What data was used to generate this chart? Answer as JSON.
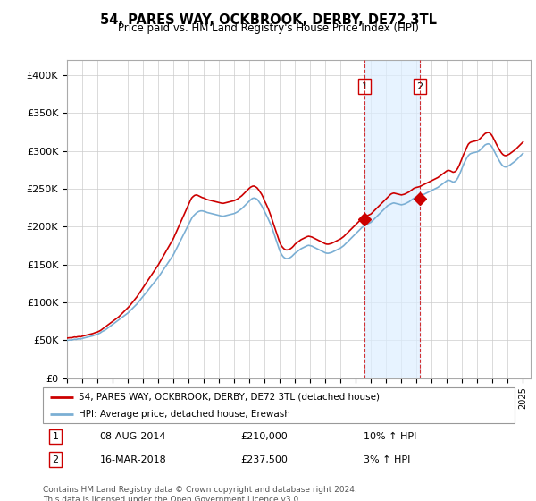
{
  "title": "54, PARES WAY, OCKBROOK, DERBY, DE72 3TL",
  "subtitle": "Price paid vs. HM Land Registry's House Price Index (HPI)",
  "ylabel_ticks": [
    "£0",
    "£50K",
    "£100K",
    "£150K",
    "£200K",
    "£250K",
    "£300K",
    "£350K",
    "£400K"
  ],
  "ytick_values": [
    0,
    50000,
    100000,
    150000,
    200000,
    250000,
    300000,
    350000,
    400000
  ],
  "ylim": [
    0,
    420000
  ],
  "xlim_start": 1995.0,
  "xlim_end": 2025.5,
  "legend_line1": "54, PARES WAY, OCKBROOK, DERBY, DE72 3TL (detached house)",
  "legend_line2": "HPI: Average price, detached house, Erewash",
  "transaction1_date": "08-AUG-2014",
  "transaction1_price": "£210,000",
  "transaction1_hpi": "10% ↑ HPI",
  "transaction2_date": "16-MAR-2018",
  "transaction2_price": "£237,500",
  "transaction2_hpi": "3% ↑ HPI",
  "footnote": "Contains HM Land Registry data © Crown copyright and database right 2024.\nThis data is licensed under the Open Government Licence v3.0.",
  "red_color": "#cc0000",
  "blue_color": "#7bafd4",
  "blue_fill_color": "#ddeeff",
  "grid_color": "#cccccc",
  "transaction1_x": 2014.58,
  "transaction2_x": 2018.21,
  "transaction1_y": 210000,
  "transaction2_y": 237500,
  "hpi_x": [
    1995.0,
    1995.1,
    1995.2,
    1995.3,
    1995.4,
    1995.5,
    1995.6,
    1995.7,
    1995.8,
    1995.9,
    1996.0,
    1996.1,
    1996.2,
    1996.3,
    1996.4,
    1996.5,
    1996.6,
    1996.7,
    1996.8,
    1996.9,
    1997.0,
    1997.1,
    1997.2,
    1997.3,
    1997.4,
    1997.5,
    1997.6,
    1997.7,
    1997.8,
    1997.9,
    1998.0,
    1998.1,
    1998.2,
    1998.3,
    1998.4,
    1998.5,
    1998.6,
    1998.7,
    1998.8,
    1998.9,
    1999.0,
    1999.1,
    1999.2,
    1999.3,
    1999.4,
    1999.5,
    1999.6,
    1999.7,
    1999.8,
    1999.9,
    2000.0,
    2000.1,
    2000.2,
    2000.3,
    2000.4,
    2000.5,
    2000.6,
    2000.7,
    2000.8,
    2000.9,
    2001.0,
    2001.1,
    2001.2,
    2001.3,
    2001.4,
    2001.5,
    2001.6,
    2001.7,
    2001.8,
    2001.9,
    2002.0,
    2002.1,
    2002.2,
    2002.3,
    2002.4,
    2002.5,
    2002.6,
    2002.7,
    2002.8,
    2002.9,
    2003.0,
    2003.1,
    2003.2,
    2003.3,
    2003.4,
    2003.5,
    2003.6,
    2003.7,
    2003.8,
    2003.9,
    2004.0,
    2004.1,
    2004.2,
    2004.3,
    2004.4,
    2004.5,
    2004.6,
    2004.7,
    2004.8,
    2004.9,
    2005.0,
    2005.1,
    2005.2,
    2005.3,
    2005.4,
    2005.5,
    2005.6,
    2005.7,
    2005.8,
    2005.9,
    2006.0,
    2006.1,
    2006.2,
    2006.3,
    2006.4,
    2006.5,
    2006.6,
    2006.7,
    2006.8,
    2006.9,
    2007.0,
    2007.1,
    2007.2,
    2007.3,
    2007.4,
    2007.5,
    2007.6,
    2007.7,
    2007.8,
    2007.9,
    2008.0,
    2008.1,
    2008.2,
    2008.3,
    2008.4,
    2008.5,
    2008.6,
    2008.7,
    2008.8,
    2008.9,
    2009.0,
    2009.1,
    2009.2,
    2009.3,
    2009.4,
    2009.5,
    2009.6,
    2009.7,
    2009.8,
    2009.9,
    2010.0,
    2010.1,
    2010.2,
    2010.3,
    2010.4,
    2010.5,
    2010.6,
    2010.7,
    2010.8,
    2010.9,
    2011.0,
    2011.1,
    2011.2,
    2011.3,
    2011.4,
    2011.5,
    2011.6,
    2011.7,
    2011.8,
    2011.9,
    2012.0,
    2012.1,
    2012.2,
    2012.3,
    2012.4,
    2012.5,
    2012.6,
    2012.7,
    2012.8,
    2012.9,
    2013.0,
    2013.1,
    2013.2,
    2013.3,
    2013.4,
    2013.5,
    2013.6,
    2013.7,
    2013.8,
    2013.9,
    2014.0,
    2014.1,
    2014.2,
    2014.3,
    2014.4,
    2014.5,
    2014.6,
    2014.7,
    2014.8,
    2014.9,
    2015.0,
    2015.1,
    2015.2,
    2015.3,
    2015.4,
    2015.5,
    2015.6,
    2015.7,
    2015.8,
    2015.9,
    2016.0,
    2016.1,
    2016.2,
    2016.3,
    2016.4,
    2016.5,
    2016.6,
    2016.7,
    2016.8,
    2016.9,
    2017.0,
    2017.1,
    2017.2,
    2017.3,
    2017.4,
    2017.5,
    2017.6,
    2017.7,
    2017.8,
    2017.9,
    2018.0,
    2018.1,
    2018.2,
    2018.3,
    2018.4,
    2018.5,
    2018.6,
    2018.7,
    2018.8,
    2018.9,
    2019.0,
    2019.1,
    2019.2,
    2019.3,
    2019.4,
    2019.5,
    2019.6,
    2019.7,
    2019.8,
    2019.9,
    2020.0,
    2020.1,
    2020.2,
    2020.3,
    2020.4,
    2020.5,
    2020.6,
    2020.7,
    2020.8,
    2020.9,
    2021.0,
    2021.1,
    2021.2,
    2021.3,
    2021.4,
    2021.5,
    2021.6,
    2021.7,
    2021.8,
    2021.9,
    2022.0,
    2022.1,
    2022.2,
    2022.3,
    2022.4,
    2022.5,
    2022.6,
    2022.7,
    2022.8,
    2022.9,
    2023.0,
    2023.1,
    2023.2,
    2023.3,
    2023.4,
    2023.5,
    2023.6,
    2023.7,
    2023.8,
    2023.9,
    2024.0,
    2024.1,
    2024.2,
    2024.3,
    2024.4,
    2024.5,
    2024.6,
    2024.7,
    2024.8,
    2024.9,
    2025.0
  ],
  "hpi_y": [
    50000,
    50200,
    50500,
    50300,
    51000,
    51500,
    51200,
    51800,
    52000,
    51700,
    52500,
    53000,
    53500,
    54000,
    54500,
    55000,
    55500,
    56000,
    56800,
    57500,
    58000,
    59000,
    60000,
    61500,
    62500,
    63500,
    65000,
    66500,
    68000,
    69500,
    71000,
    72500,
    74000,
    75500,
    77000,
    78500,
    80000,
    81500,
    83000,
    84500,
    86000,
    88000,
    90000,
    92000,
    94000,
    96000,
    98000,
    100500,
    103000,
    105500,
    108000,
    110500,
    113000,
    115500,
    118000,
    120500,
    123000,
    125500,
    128000,
    130500,
    133000,
    136000,
    139000,
    142000,
    145000,
    148000,
    151000,
    154000,
    157000,
    160000,
    163000,
    167000,
    171000,
    175000,
    179000,
    183000,
    187000,
    191000,
    195000,
    199000,
    203000,
    207000,
    211000,
    214000,
    216000,
    218000,
    219500,
    220500,
    221000,
    221000,
    220500,
    220000,
    219000,
    218500,
    218000,
    217500,
    217000,
    216500,
    216000,
    215500,
    215000,
    214500,
    214000,
    214000,
    214500,
    215000,
    215500,
    216000,
    216500,
    217000,
    217500,
    218500,
    219500,
    221000,
    222500,
    224000,
    226000,
    228000,
    230000,
    232000,
    234000,
    236000,
    237500,
    238000,
    237500,
    236500,
    234000,
    231000,
    228000,
    224000,
    220000,
    216000,
    212000,
    207500,
    203000,
    198000,
    192000,
    186000,
    180000,
    174000,
    168000,
    164000,
    161000,
    159000,
    158000,
    158000,
    158500,
    159500,
    161000,
    163000,
    165000,
    166500,
    168000,
    169500,
    171000,
    172000,
    173000,
    174000,
    175000,
    175500,
    175000,
    174500,
    173500,
    172500,
    171500,
    170500,
    169500,
    168500,
    167500,
    166500,
    165500,
    165000,
    165000,
    165500,
    166000,
    167000,
    168000,
    169000,
    170000,
    171000,
    172000,
    173500,
    175000,
    177000,
    179000,
    181000,
    183000,
    185000,
    187000,
    189000,
    191000,
    193000,
    195000,
    197000,
    199000,
    200500,
    202000,
    203000,
    204000,
    205000,
    206000,
    208000,
    210000,
    212000,
    214000,
    216000,
    218000,
    220000,
    222000,
    224000,
    226000,
    228000,
    229000,
    230000,
    231000,
    231500,
    231000,
    230500,
    230000,
    229500,
    229000,
    229500,
    230000,
    231000,
    232000,
    233000,
    234500,
    236000,
    237500,
    238500,
    239000,
    239500,
    240000,
    241000,
    242000,
    243000,
    244000,
    245000,
    246000,
    247000,
    248000,
    249000,
    250000,
    251000,
    252000,
    253500,
    255000,
    256500,
    258000,
    259500,
    261000,
    261500,
    261000,
    260000,
    259000,
    259500,
    261000,
    264000,
    268000,
    273000,
    278000,
    283000,
    287000,
    291000,
    294000,
    296000,
    297000,
    297500,
    298000,
    298500,
    299000,
    300000,
    302000,
    304000,
    306000,
    308000,
    309000,
    309500,
    309000,
    307000,
    304000,
    300000,
    296000,
    292000,
    288500,
    285000,
    282000,
    280000,
    279000,
    279000,
    280000,
    281000,
    282500,
    284000,
    285500,
    287000,
    289000,
    291000,
    293000,
    295000,
    297000
  ],
  "red_y": [
    53000,
    53200,
    53500,
    53300,
    54000,
    54500,
    54200,
    54800,
    55000,
    54700,
    55500,
    56000,
    56500,
    57000,
    57500,
    58000,
    58500,
    59000,
    59800,
    60500,
    61000,
    62000,
    63000,
    64500,
    66000,
    67500,
    69000,
    70500,
    72000,
    73500,
    75000,
    76500,
    78000,
    79500,
    81000,
    83000,
    85000,
    87000,
    89000,
    91000,
    93000,
    95000,
    97500,
    100000,
    102500,
    105000,
    107500,
    110500,
    113500,
    116500,
    119500,
    122500,
    125500,
    128500,
    131500,
    134500,
    137500,
    140500,
    143500,
    146500,
    149500,
    153000,
    156500,
    160000,
    163500,
    167000,
    170500,
    174000,
    177500,
    181000,
    184500,
    189000,
    193500,
    198000,
    202500,
    207000,
    211500,
    216000,
    220500,
    225000,
    229500,
    234000,
    238000,
    240000,
    241500,
    242000,
    241500,
    240500,
    239500,
    238500,
    238000,
    237000,
    236000,
    235500,
    235000,
    234500,
    234000,
    233500,
    233000,
    232500,
    232000,
    231500,
    231000,
    231000,
    231500,
    232000,
    232500,
    233000,
    233500,
    234000,
    234500,
    235500,
    236500,
    238000,
    239500,
    241000,
    243000,
    245000,
    247000,
    249000,
    251000,
    252500,
    253500,
    253800,
    252800,
    251500,
    249000,
    246000,
    243000,
    239000,
    234000,
    230000,
    225500,
    220500,
    215000,
    209000,
    203000,
    197000,
    191000,
    185000,
    179000,
    175000,
    172500,
    170500,
    169500,
    169500,
    170000,
    171000,
    172500,
    174500,
    177000,
    178500,
    180000,
    181500,
    183000,
    184000,
    185000,
    186000,
    187000,
    187500,
    187000,
    186500,
    185500,
    184500,
    183500,
    182500,
    181500,
    180500,
    179500,
    178500,
    177500,
    177000,
    177000,
    177500,
    178000,
    179000,
    180000,
    181000,
    182000,
    183000,
    184000,
    185500,
    187000,
    189000,
    191000,
    193000,
    195000,
    197000,
    199000,
    201000,
    203000,
    205000,
    207000,
    209000,
    210000,
    211500,
    213000,
    214000,
    215000,
    216000,
    217000,
    219000,
    221000,
    223000,
    225000,
    227000,
    229000,
    231000,
    233000,
    235000,
    237000,
    239000,
    241000,
    243000,
    244000,
    244500,
    244000,
    243500,
    243000,
    242500,
    242000,
    242500,
    243000,
    244000,
    245000,
    246000,
    247500,
    249000,
    250500,
    251500,
    252000,
    252500,
    253000,
    254000,
    255000,
    256000,
    257000,
    258000,
    259000,
    260000,
    261000,
    262000,
    263000,
    264000,
    265000,
    266500,
    268000,
    269500,
    271000,
    272500,
    274000,
    274500,
    274000,
    273000,
    272000,
    272500,
    274000,
    277000,
    281000,
    286000,
    291000,
    296000,
    300000,
    305000,
    309000,
    311000,
    312000,
    312500,
    313000,
    313500,
    314000,
    315000,
    317000,
    319000,
    321000,
    323000,
    324000,
    324500,
    324000,
    322000,
    319000,
    315000,
    311000,
    307000,
    303500,
    300000,
    297000,
    295000,
    294000,
    294000,
    295000,
    296000,
    297500,
    299000,
    300500,
    302000,
    304000,
    306000,
    308000,
    310000,
    312000
  ]
}
